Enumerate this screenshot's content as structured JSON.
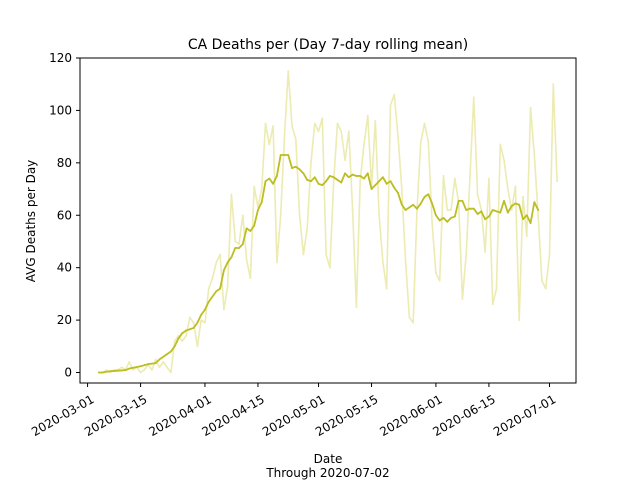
{
  "chart_data": {
    "type": "line",
    "title": "CA Deaths per (Day 7-day rolling mean)",
    "xlabel": "Date",
    "xlabel_note": "Through 2020-07-02",
    "ylabel": "AVG Deaths per Day",
    "ylim": [
      -4,
      120
    ],
    "xlim": [
      "2020-02-28",
      "2020-07-08"
    ],
    "grid": false,
    "x_ticks": [
      "2020-03-01",
      "2020-03-15",
      "2020-04-01",
      "2020-04-15",
      "2020-05-01",
      "2020-05-15",
      "2020-06-01",
      "2020-06-15",
      "2020-07-01"
    ],
    "y_ticks": [
      0,
      20,
      40,
      60,
      80,
      100,
      120
    ],
    "colors": {
      "daily": "#ecebb1",
      "rolling": "#bcbd22"
    },
    "series": [
      {
        "key": "daily",
        "points": [
          [
            "2020-03-04",
            0
          ],
          [
            "2020-03-05",
            0
          ],
          [
            "2020-03-06",
            1
          ],
          [
            "2020-03-07",
            0
          ],
          [
            "2020-03-08",
            1
          ],
          [
            "2020-03-09",
            1
          ],
          [
            "2020-03-10",
            2
          ],
          [
            "2020-03-11",
            1
          ],
          [
            "2020-03-12",
            4
          ],
          [
            "2020-03-13",
            1
          ],
          [
            "2020-03-14",
            2
          ],
          [
            "2020-03-15",
            0
          ],
          [
            "2020-03-16",
            1
          ],
          [
            "2020-03-17",
            3
          ],
          [
            "2020-03-18",
            1
          ],
          [
            "2020-03-19",
            5
          ],
          [
            "2020-03-20",
            2
          ],
          [
            "2020-03-21",
            4
          ],
          [
            "2020-03-22",
            2
          ],
          [
            "2020-03-23",
            0
          ],
          [
            "2020-03-24",
            12
          ],
          [
            "2020-03-25",
            14
          ],
          [
            "2020-03-26",
            12
          ],
          [
            "2020-03-27",
            14
          ],
          [
            "2020-03-28",
            21
          ],
          [
            "2020-03-29",
            19
          ],
          [
            "2020-03-30",
            10
          ],
          [
            "2020-03-31",
            20
          ],
          [
            "2020-04-01",
            19
          ],
          [
            "2020-04-02",
            32
          ],
          [
            "2020-04-03",
            36
          ],
          [
            "2020-04-04",
            42
          ],
          [
            "2020-04-05",
            45
          ],
          [
            "2020-04-06",
            24
          ],
          [
            "2020-04-07",
            33
          ],
          [
            "2020-04-08",
            68
          ],
          [
            "2020-04-09",
            50
          ],
          [
            "2020-04-10",
            49
          ],
          [
            "2020-04-11",
            60
          ],
          [
            "2020-04-12",
            43
          ],
          [
            "2020-04-13",
            36
          ],
          [
            "2020-04-14",
            71
          ],
          [
            "2020-04-15",
            63
          ],
          [
            "2020-04-16",
            70
          ],
          [
            "2020-04-17",
            95
          ],
          [
            "2020-04-18",
            87
          ],
          [
            "2020-04-19",
            94
          ],
          [
            "2020-04-20",
            42
          ],
          [
            "2020-04-21",
            60
          ],
          [
            "2020-04-22",
            90
          ],
          [
            "2020-04-23",
            115
          ],
          [
            "2020-04-24",
            94
          ],
          [
            "2020-04-25",
            89
          ],
          [
            "2020-04-26",
            60
          ],
          [
            "2020-04-27",
            45
          ],
          [
            "2020-04-28",
            55
          ],
          [
            "2020-04-29",
            80
          ],
          [
            "2020-04-30",
            95
          ],
          [
            "2020-05-01",
            92
          ],
          [
            "2020-05-02",
            97
          ],
          [
            "2020-05-03",
            45
          ],
          [
            "2020-05-04",
            40
          ],
          [
            "2020-05-05",
            73
          ],
          [
            "2020-05-06",
            95
          ],
          [
            "2020-05-07",
            92
          ],
          [
            "2020-05-08",
            81
          ],
          [
            "2020-05-09",
            92
          ],
          [
            "2020-05-10",
            62
          ],
          [
            "2020-05-11",
            25
          ],
          [
            "2020-05-12",
            73
          ],
          [
            "2020-05-13",
            87
          ],
          [
            "2020-05-14",
            98
          ],
          [
            "2020-05-15",
            71
          ],
          [
            "2020-05-16",
            96
          ],
          [
            "2020-05-17",
            60
          ],
          [
            "2020-05-18",
            42
          ],
          [
            "2020-05-19",
            32
          ],
          [
            "2020-05-20",
            102
          ],
          [
            "2020-05-21",
            106
          ],
          [
            "2020-05-22",
            90
          ],
          [
            "2020-05-23",
            70
          ],
          [
            "2020-05-24",
            42
          ],
          [
            "2020-05-25",
            21
          ],
          [
            "2020-05-26",
            19
          ],
          [
            "2020-05-27",
            62
          ],
          [
            "2020-05-28",
            88
          ],
          [
            "2020-05-29",
            95
          ],
          [
            "2020-05-30",
            88
          ],
          [
            "2020-05-31",
            57
          ],
          [
            "2020-06-01",
            38
          ],
          [
            "2020-06-02",
            35
          ],
          [
            "2020-06-03",
            75
          ],
          [
            "2020-06-04",
            62
          ],
          [
            "2020-06-05",
            62
          ],
          [
            "2020-06-06",
            74
          ],
          [
            "2020-06-07",
            65
          ],
          [
            "2020-06-08",
            28
          ],
          [
            "2020-06-09",
            45
          ],
          [
            "2020-06-10",
            75
          ],
          [
            "2020-06-11",
            105
          ],
          [
            "2020-06-12",
            68
          ],
          [
            "2020-06-13",
            62
          ],
          [
            "2020-06-14",
            46
          ],
          [
            "2020-06-15",
            74
          ],
          [
            "2020-06-16",
            26
          ],
          [
            "2020-06-17",
            32
          ],
          [
            "2020-06-18",
            87
          ],
          [
            "2020-06-19",
            81
          ],
          [
            "2020-06-20",
            70
          ],
          [
            "2020-06-21",
            62
          ],
          [
            "2020-06-22",
            71
          ],
          [
            "2020-06-23",
            20
          ],
          [
            "2020-06-24",
            67
          ],
          [
            "2020-06-25",
            52
          ],
          [
            "2020-06-26",
            101
          ],
          [
            "2020-06-27",
            83
          ],
          [
            "2020-06-28",
            60
          ],
          [
            "2020-06-29",
            35
          ],
          [
            "2020-06-30",
            32
          ],
          [
            "2020-07-01",
            45
          ],
          [
            "2020-07-02",
            110
          ],
          [
            "2020-07-03",
            73
          ]
        ]
      },
      {
        "key": "rolling",
        "points": [
          [
            "2020-03-04",
            0
          ],
          [
            "2020-03-05",
            0
          ],
          [
            "2020-03-06",
            0.3
          ],
          [
            "2020-03-07",
            0.5
          ],
          [
            "2020-03-08",
            0.6
          ],
          [
            "2020-03-09",
            0.7
          ],
          [
            "2020-03-10",
            0.8
          ],
          [
            "2020-03-11",
            0.9
          ],
          [
            "2020-03-12",
            1.5
          ],
          [
            "2020-03-13",
            1.8
          ],
          [
            "2020-03-14",
            2.1
          ],
          [
            "2020-03-15",
            2.4
          ],
          [
            "2020-03-16",
            2.8
          ],
          [
            "2020-03-17",
            3.2
          ],
          [
            "2020-03-18",
            3.4
          ],
          [
            "2020-03-19",
            3.6
          ],
          [
            "2020-03-20",
            5
          ],
          [
            "2020-03-21",
            6
          ],
          [
            "2020-03-22",
            7
          ],
          [
            "2020-03-23",
            8
          ],
          [
            "2020-03-24",
            10
          ],
          [
            "2020-03-25",
            13
          ],
          [
            "2020-03-26",
            15
          ],
          [
            "2020-03-27",
            16
          ],
          [
            "2020-03-28",
            16.5
          ],
          [
            "2020-03-29",
            17
          ],
          [
            "2020-03-30",
            19
          ],
          [
            "2020-03-31",
            22
          ],
          [
            "2020-04-01",
            24
          ],
          [
            "2020-04-02",
            27
          ],
          [
            "2020-04-03",
            29
          ],
          [
            "2020-04-04",
            31
          ],
          [
            "2020-04-05",
            32
          ],
          [
            "2020-04-06",
            39
          ],
          [
            "2020-04-07",
            42
          ],
          [
            "2020-04-08",
            44
          ],
          [
            "2020-04-09",
            47.5
          ],
          [
            "2020-04-10",
            47.5
          ],
          [
            "2020-04-11",
            49
          ],
          [
            "2020-04-12",
            55
          ],
          [
            "2020-04-13",
            54
          ],
          [
            "2020-04-14",
            56
          ],
          [
            "2020-04-15",
            62
          ],
          [
            "2020-04-16",
            65
          ],
          [
            "2020-04-17",
            73
          ],
          [
            "2020-04-18",
            74
          ],
          [
            "2020-04-19",
            72
          ],
          [
            "2020-04-20",
            75
          ],
          [
            "2020-04-21",
            83
          ],
          [
            "2020-04-22",
            83
          ],
          [
            "2020-04-23",
            83
          ],
          [
            "2020-04-24",
            78
          ],
          [
            "2020-04-25",
            78.5
          ],
          [
            "2020-04-26",
            77.5
          ],
          [
            "2020-04-27",
            76
          ],
          [
            "2020-04-28",
            73.5
          ],
          [
            "2020-04-29",
            73
          ],
          [
            "2020-04-30",
            74.5
          ],
          [
            "2020-05-01",
            72
          ],
          [
            "2020-05-02",
            71.5
          ],
          [
            "2020-05-03",
            73
          ],
          [
            "2020-05-04",
            75
          ],
          [
            "2020-05-05",
            74.5
          ],
          [
            "2020-05-06",
            73.5
          ],
          [
            "2020-05-07",
            72.5
          ],
          [
            "2020-05-08",
            76
          ],
          [
            "2020-05-09",
            74.5
          ],
          [
            "2020-05-10",
            75.5
          ],
          [
            "2020-05-11",
            75
          ],
          [
            "2020-05-12",
            75
          ],
          [
            "2020-05-13",
            74
          ],
          [
            "2020-05-14",
            76
          ],
          [
            "2020-05-15",
            70
          ],
          [
            "2020-05-16",
            71.5
          ],
          [
            "2020-05-17",
            73
          ],
          [
            "2020-05-18",
            74.5
          ],
          [
            "2020-05-19",
            72
          ],
          [
            "2020-05-20",
            73
          ],
          [
            "2020-05-21",
            70.5
          ],
          [
            "2020-05-22",
            68.5
          ],
          [
            "2020-05-23",
            64
          ],
          [
            "2020-05-24",
            62
          ],
          [
            "2020-05-25",
            63
          ],
          [
            "2020-05-26",
            64
          ],
          [
            "2020-05-27",
            62.5
          ],
          [
            "2020-05-28",
            64.5
          ],
          [
            "2020-05-29",
            67
          ],
          [
            "2020-05-30",
            68
          ],
          [
            "2020-05-31",
            64.5
          ],
          [
            "2020-06-01",
            60
          ],
          [
            "2020-06-02",
            58
          ],
          [
            "2020-06-03",
            59
          ],
          [
            "2020-06-04",
            57.5
          ],
          [
            "2020-06-05",
            59
          ],
          [
            "2020-06-06",
            59.5
          ],
          [
            "2020-06-07",
            65.5
          ],
          [
            "2020-06-08",
            65.5
          ],
          [
            "2020-06-09",
            62
          ],
          [
            "2020-06-10",
            62.5
          ],
          [
            "2020-06-11",
            62.5
          ],
          [
            "2020-06-12",
            60.5
          ],
          [
            "2020-06-13",
            61.5
          ],
          [
            "2020-06-14",
            58.5
          ],
          [
            "2020-06-15",
            59.5
          ],
          [
            "2020-06-16",
            62
          ],
          [
            "2020-06-17",
            61.5
          ],
          [
            "2020-06-18",
            61
          ],
          [
            "2020-06-19",
            65.5
          ],
          [
            "2020-06-20",
            61
          ],
          [
            "2020-06-21",
            63.5
          ],
          [
            "2020-06-22",
            64.5
          ],
          [
            "2020-06-23",
            64
          ],
          [
            "2020-06-24",
            58.5
          ],
          [
            "2020-06-25",
            60
          ],
          [
            "2020-06-26",
            57
          ],
          [
            "2020-06-27",
            65
          ],
          [
            "2020-06-28",
            62
          ]
        ]
      }
    ]
  }
}
